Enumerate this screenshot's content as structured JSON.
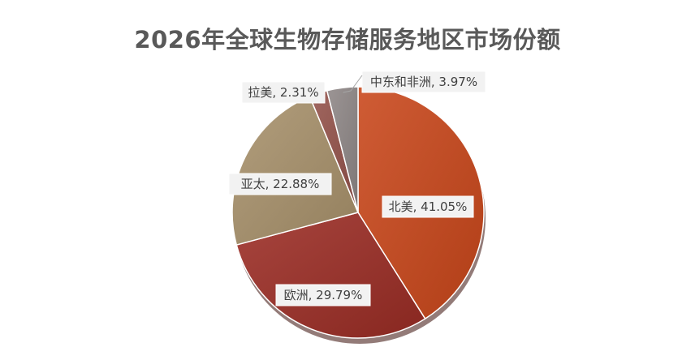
{
  "chart_data": {
    "type": "pie",
    "title": "2026年全球生物存储服务地区市场份额",
    "slices": [
      {
        "name": "北美",
        "value": 41.05,
        "label": "北美, 41.05%",
        "color": "#c9461a"
      },
      {
        "name": "欧洲",
        "value": 29.79,
        "label": "欧洲, 29.79%",
        "color": "#9b2c24"
      },
      {
        "name": "亚太",
        "value": 22.88,
        "label": "亚太, 22.88%",
        "color": "#a8916b"
      },
      {
        "name": "拉美",
        "value": 2.31,
        "label": "拉美, 2.31%",
        "color": "#94524a"
      },
      {
        "name": "中东和非洲",
        "value": 3.97,
        "label": "中东和非洲, 3.97%",
        "color": "#8e8786"
      }
    ]
  }
}
